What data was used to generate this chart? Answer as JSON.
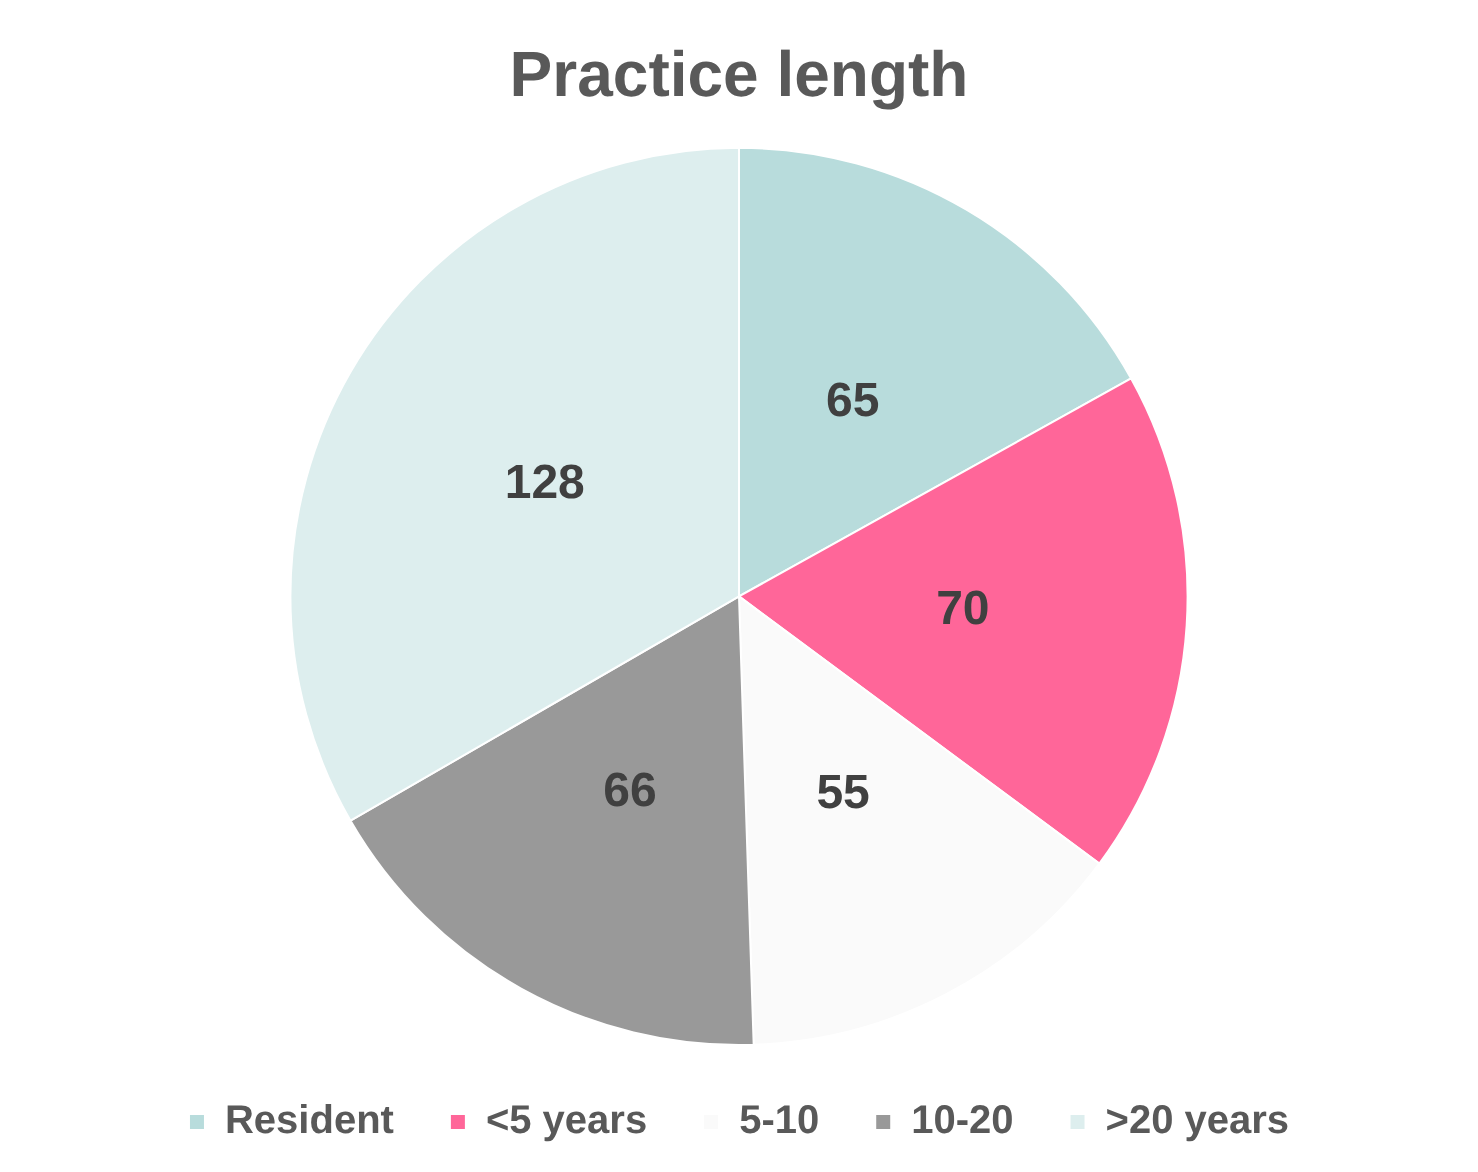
{
  "chart_data": {
    "type": "pie",
    "title": "Practice length",
    "categories": [
      "Resident",
      "<5 years",
      "5-10",
      "10-20",
      ">20 years"
    ],
    "values": [
      65,
      70,
      55,
      66,
      128
    ],
    "colors": [
      "#b8dcdc",
      "#ff6699",
      "#fafafa",
      "#999999",
      "#ddeeee"
    ],
    "data_labels": true,
    "legend": "bottom"
  }
}
